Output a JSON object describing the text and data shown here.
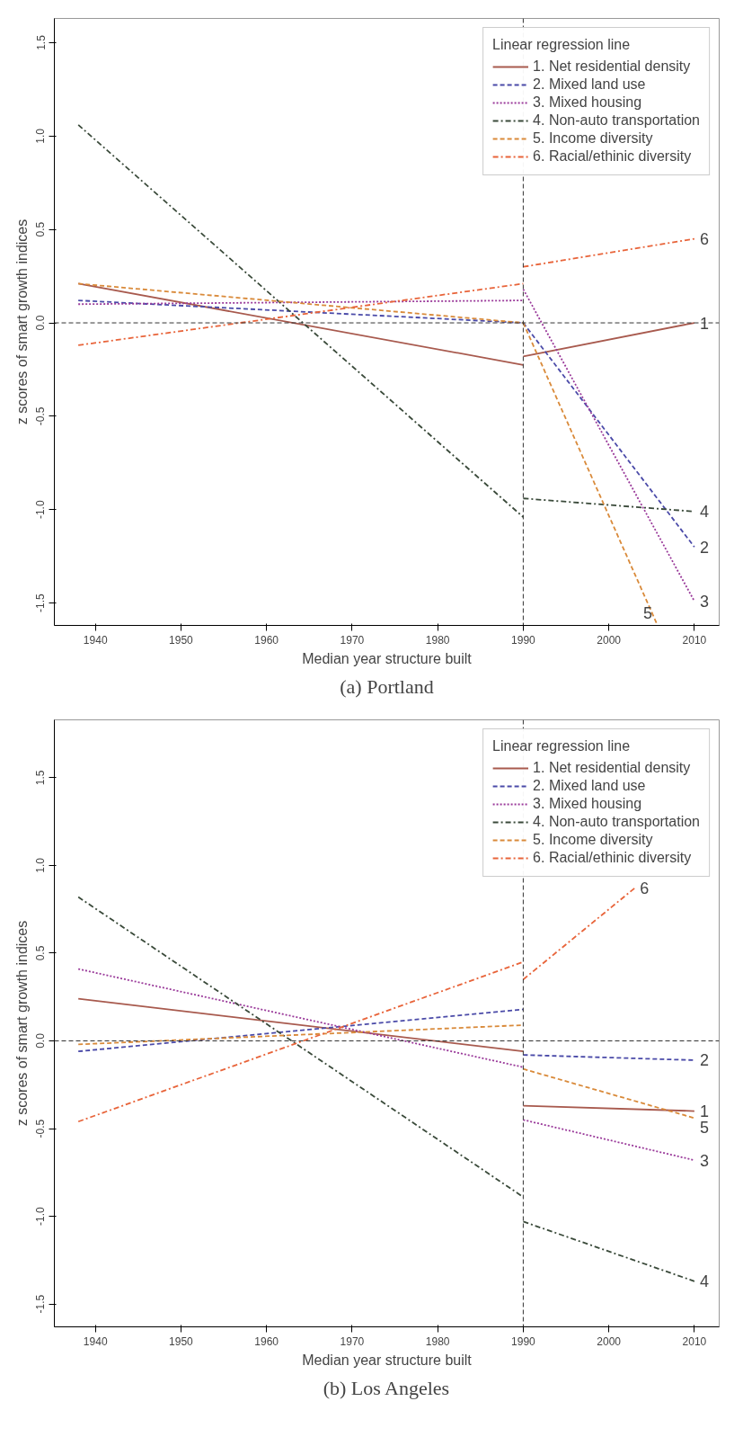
{
  "chart_data": [
    {
      "type": "line",
      "title": "(a) Portland",
      "xlabel": "Median year structure built",
      "ylabel": "z scores of smart growth indices",
      "legend_title": "Linear regression line",
      "legend": "top right",
      "grid": false,
      "xlim": [
        1935.2,
        2012.9
      ],
      "xticks": [
        1940,
        1950,
        1960,
        1970,
        1980,
        1990,
        2000,
        2010
      ],
      "ylim": [
        -1.62,
        1.63
      ],
      "yticks": [
        -1.5,
        {
          "value": -1,
          "label": "-1.0"
        },
        -0.5,
        {
          "value": 0,
          "label": "0.0"
        },
        0.5,
        {
          "value": 1,
          "label": "1.0"
        },
        1.5
      ],
      "series": [
        {
          "name": "1. Net residential density",
          "color": "#a85a4e",
          "line_style": "solid",
          "x": [
            1938,
            1990,
            null,
            1990,
            2010
          ],
          "values": [
            0.21,
            -0.225,
            null,
            -0.18,
            0.0
          ]
        },
        {
          "name": "2. Mixed land use",
          "color": "#4a4aa8",
          "line_style": "dashed",
          "x": [
            1938,
            1990,
            null,
            1990,
            2010
          ],
          "values": [
            0.12,
            0.0,
            null,
            0.0,
            -1.2
          ]
        },
        {
          "name": "3. Mixed housing",
          "color": "#9a3a9a",
          "line_style": "dotted",
          "x": [
            1938,
            1990,
            null,
            1990,
            2010
          ],
          "values": [
            0.1,
            0.12,
            null,
            0.18,
            -1.49
          ]
        },
        {
          "name": "4. Non-auto transportation",
          "color": "#3a4a3a",
          "line_style": "dashdot",
          "x": [
            1938,
            1990,
            null,
            1990,
            2010
          ],
          "values": [
            1.06,
            -1.04,
            null,
            -0.94,
            -1.01
          ]
        },
        {
          "name": "5. Income diversity",
          "color": "#d98a3a",
          "line_style": "dashed",
          "x": [
            1938,
            1990,
            null,
            1990,
            2005.7
          ],
          "values": [
            0.21,
            0.0,
            null,
            0.0,
            -1.62
          ]
        },
        {
          "name": "6. Racial/ethinic diversity",
          "color": "#e8643a",
          "line_style": "dashdot",
          "x": [
            1938,
            1990,
            null,
            1990,
            2010
          ],
          "values": [
            -0.12,
            0.21,
            null,
            0.3,
            0.45
          ]
        }
      ],
      "ref_lines": [
        {
          "axis": "y",
          "value": 0.0,
          "label": null,
          "color": "#333333",
          "line_style": "dashed"
        },
        {
          "axis": "x",
          "value": 1990,
          "label": null,
          "color": "#333333",
          "line_style": "dashed"
        }
      ],
      "annotations": [
        {
          "text": "6",
          "x": 2010,
          "y": 0.45
        },
        {
          "text": "1",
          "x": 2010,
          "y": 0.0
        },
        {
          "text": "4",
          "x": 2010,
          "y": -1.01
        },
        {
          "text": "2",
          "x": 2010,
          "y": -1.2
        },
        {
          "text": "3",
          "x": 2010,
          "y": -1.49
        },
        {
          "text": "5",
          "x": 2005.7,
          "y": -1.62
        }
      ]
    },
    {
      "type": "line",
      "title": "(b) Los Angeles",
      "xlabel": "Median year structure built",
      "ylabel": "z scores of smart growth indices",
      "legend_title": "Linear regression line",
      "legend": "top right",
      "grid": false,
      "xlim": [
        1935.2,
        2012.9
      ],
      "xticks": [
        1940,
        1950,
        1960,
        1970,
        1980,
        1990,
        2000,
        2010
      ],
      "ylim": [
        -1.63,
        1.83
      ],
      "yticks": [
        -1.5,
        {
          "value": -1,
          "label": "-1.0"
        },
        -0.5,
        {
          "value": 0,
          "label": "0.0"
        },
        0.5,
        {
          "value": 1,
          "label": "1.0"
        },
        1.5
      ],
      "series": [
        {
          "name": "1. Net residential density",
          "color": "#a85a4e",
          "line_style": "solid",
          "x": [
            1938,
            1990,
            null,
            1990,
            2010
          ],
          "values": [
            0.24,
            -0.06,
            null,
            -0.37,
            -0.4
          ]
        },
        {
          "name": "2. Mixed land use",
          "color": "#4a4aa8",
          "line_style": "dashed",
          "x": [
            1938,
            1990,
            null,
            1990,
            2010
          ],
          "values": [
            -0.06,
            0.18,
            null,
            -0.08,
            -0.11
          ]
        },
        {
          "name": "3. Mixed housing",
          "color": "#9a3a9a",
          "line_style": "dotted",
          "x": [
            1938,
            1990,
            null,
            1990,
            2010
          ],
          "values": [
            0.41,
            -0.15,
            null,
            -0.45,
            -0.68
          ]
        },
        {
          "name": "4. Non-auto transportation",
          "color": "#3a4a3a",
          "line_style": "dashdot",
          "x": [
            1938,
            1990,
            null,
            1990,
            2010
          ],
          "values": [
            0.82,
            -0.89,
            null,
            -1.03,
            -1.37
          ]
        },
        {
          "name": "5. Income diversity",
          "color": "#d98a3a",
          "line_style": "dashed",
          "x": [
            1938,
            1990,
            null,
            1990,
            2010
          ],
          "values": [
            -0.02,
            0.09,
            null,
            -0.16,
            -0.44
          ]
        },
        {
          "name": "6. Racial/ethinic diversity",
          "color": "#e8643a",
          "line_style": "dashdot",
          "x": [
            1938,
            1990,
            null,
            1990,
            2003
          ],
          "values": [
            -0.46,
            0.45,
            null,
            0.35,
            0.87
          ]
        }
      ],
      "ref_lines": [
        {
          "axis": "y",
          "value": 0.0,
          "label": null,
          "color": "#333333",
          "line_style": "dashed"
        },
        {
          "axis": "x",
          "value": 1990,
          "label": null,
          "color": "#333333",
          "line_style": "dashed"
        }
      ],
      "annotations": [
        {
          "text": "6",
          "x": 2003,
          "y": 0.87
        },
        {
          "text": "2",
          "x": 2010,
          "y": -0.11
        },
        {
          "text": "1",
          "x": 2010,
          "y": -0.4
        },
        {
          "text": "5",
          "x": 2010,
          "y": -0.44
        },
        {
          "text": "3",
          "x": 2010,
          "y": -0.68
        },
        {
          "text": "4",
          "x": 2010,
          "y": -1.37
        }
      ]
    }
  ]
}
